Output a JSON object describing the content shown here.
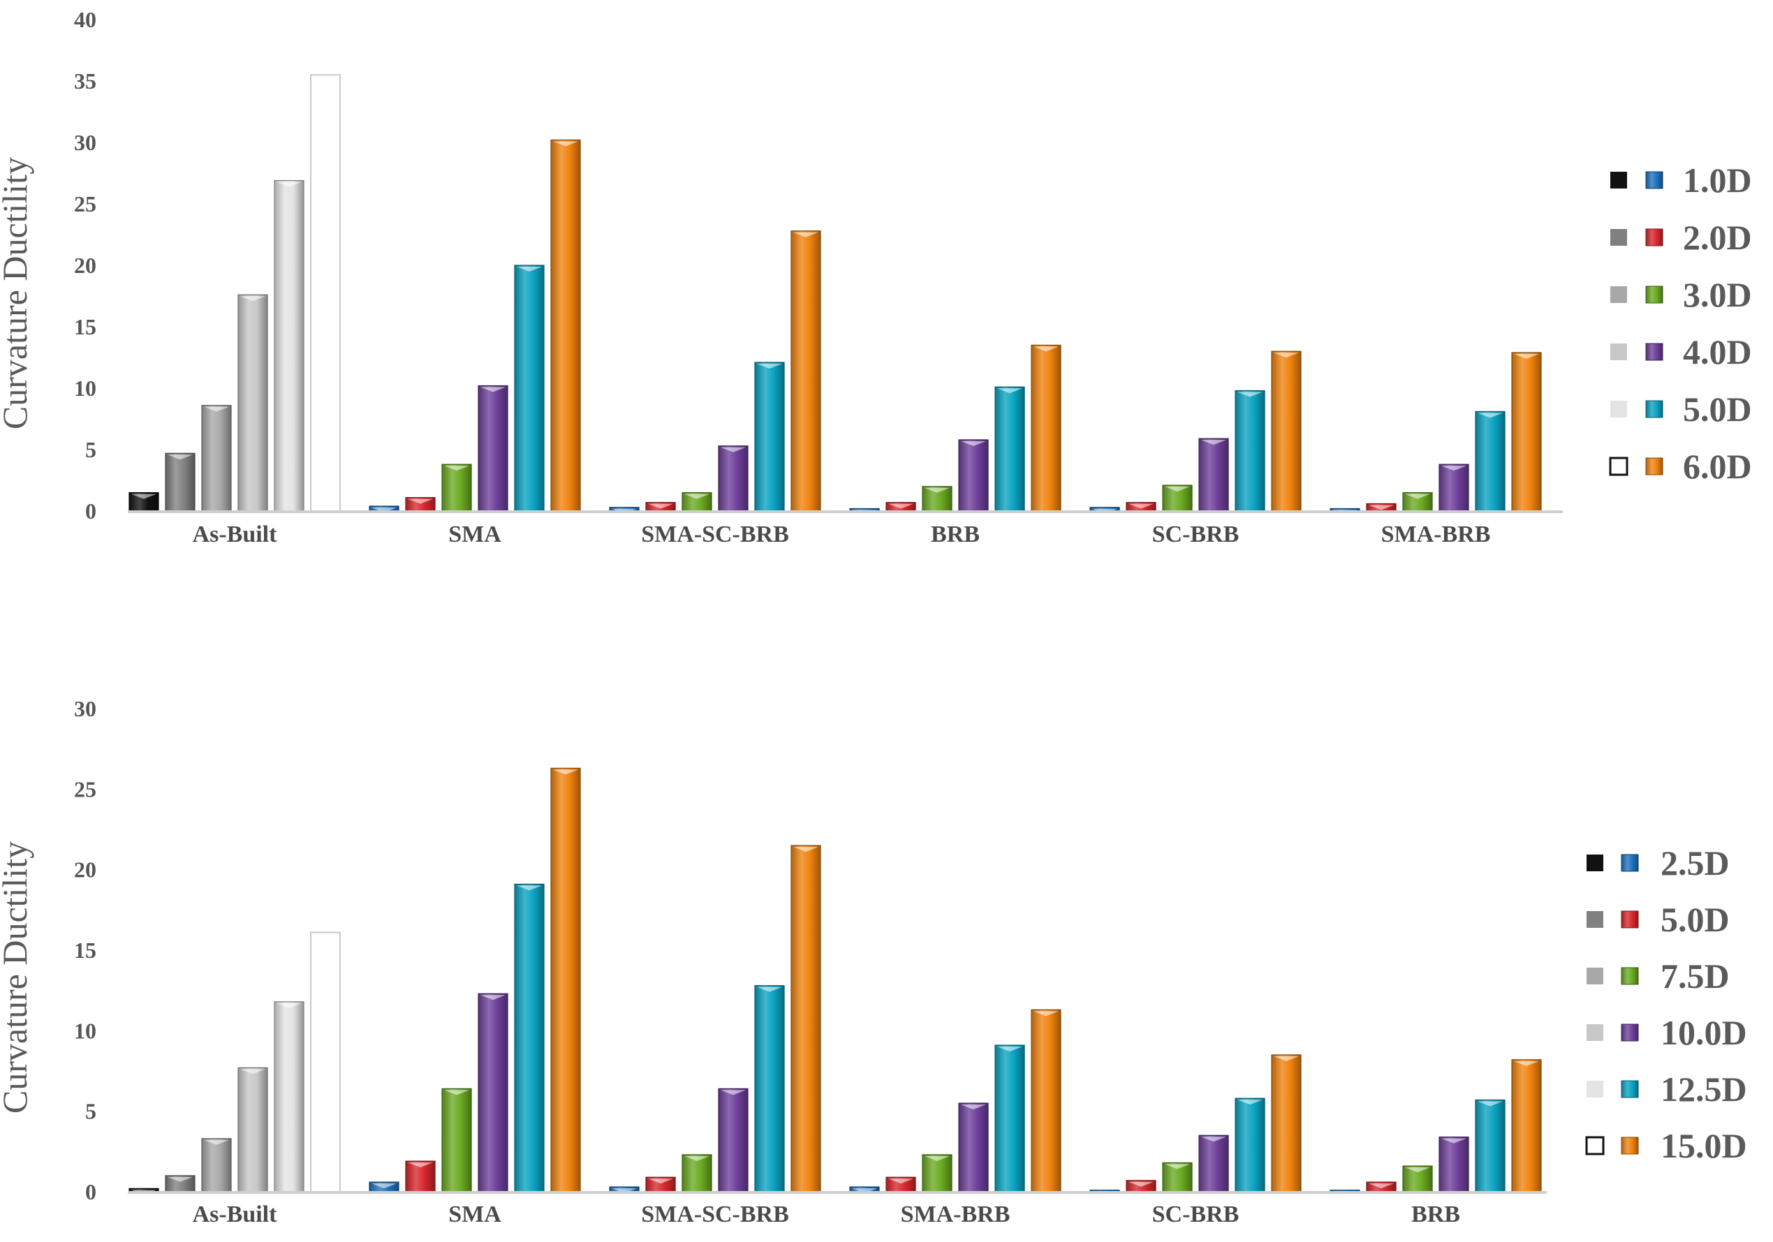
{
  "chart_data": [
    {
      "type": "bar",
      "title": "",
      "xlabel": "",
      "ylabel": "Curvature Ductility",
      "ylim": [
        0,
        40
      ],
      "yticks": [
        0,
        5,
        10,
        15,
        20,
        25,
        30,
        35,
        40
      ],
      "categories": [
        "As-Built",
        "SMA",
        "SMA-SC-BRB",
        "BRB",
        "SC-BRB",
        "SMA-BRB"
      ],
      "legend": [
        "1.0D",
        "2.0D",
        "3.0D",
        "4.0D",
        "5.0D",
        "6.0D"
      ],
      "legend_position": "right",
      "series_colors": [
        "#1e73be",
        "#d9262b",
        "#6aaa21",
        "#6e3f9a",
        "#0aa3c2",
        "#f0820e"
      ],
      "asbuilt_colors": [
        "#111111",
        "#808080",
        "#a8a8a8",
        "#c8c8c8",
        "#e4e4e4",
        "#ffffff"
      ],
      "values": [
        [
          1.5,
          4.7,
          8.6,
          17.6,
          26.9,
          35.5
        ],
        [
          0.4,
          1.1,
          3.8,
          10.2,
          20.0,
          30.2
        ],
        [
          0.3,
          0.7,
          1.5,
          5.3,
          12.1,
          22.8
        ],
        [
          0.2,
          0.7,
          2.0,
          5.8,
          10.1,
          13.5
        ],
        [
          0.3,
          0.7,
          2.1,
          5.9,
          9.8,
          13.0
        ],
        [
          0.2,
          0.6,
          1.5,
          3.8,
          8.1,
          12.9
        ]
      ]
    },
    {
      "type": "bar",
      "title": "",
      "xlabel": "",
      "ylabel": "Curvature Ductility",
      "ylim": [
        0,
        30
      ],
      "yticks": [
        0,
        5,
        10,
        15,
        20,
        25,
        30
      ],
      "categories": [
        "As-Built",
        "SMA",
        "SMA-SC-BRB",
        "SMA-BRB",
        "SC-BRB",
        "BRB"
      ],
      "legend": [
        "2.5D",
        "5.0D",
        "7.5D",
        "10.0D",
        "12.5D",
        "15.0D"
      ],
      "legend_position": "right",
      "series_colors": [
        "#1e73be",
        "#d9262b",
        "#6aaa21",
        "#6e3f9a",
        "#0aa3c2",
        "#f0820e"
      ],
      "asbuilt_colors": [
        "#111111",
        "#808080",
        "#a8a8a8",
        "#c8c8c8",
        "#e4e4e4",
        "#ffffff"
      ],
      "values": [
        [
          0.2,
          1.0,
          3.3,
          7.7,
          11.8,
          16.1
        ],
        [
          0.6,
          1.9,
          6.4,
          12.3,
          19.1,
          26.3
        ],
        [
          0.3,
          0.9,
          2.3,
          6.4,
          12.8,
          21.5
        ],
        [
          0.3,
          0.9,
          2.3,
          5.5,
          9.1,
          11.3
        ],
        [
          0.1,
          0.7,
          1.8,
          3.5,
          5.8,
          8.5
        ],
        [
          0.1,
          0.6,
          1.6,
          3.4,
          5.7,
          8.2
        ]
      ]
    }
  ]
}
